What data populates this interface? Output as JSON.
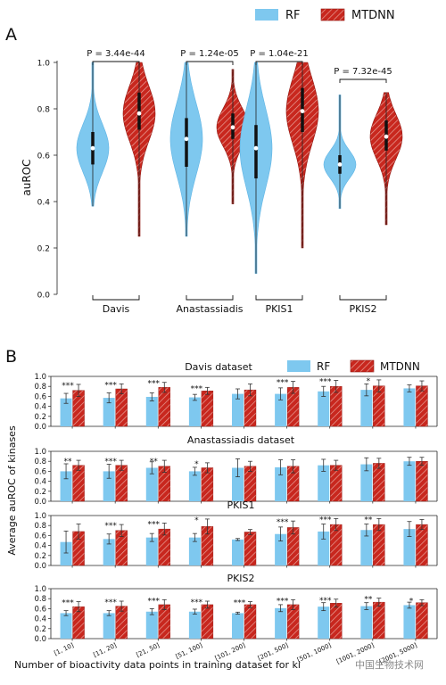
{
  "panel_a": {
    "label": "A",
    "legend": [
      "RF",
      "MTDNN"
    ],
    "ylabel": "auROC",
    "yticks": [
      "0.0",
      "0.2",
      "0.4",
      "0.6",
      "0.8",
      "1.0"
    ],
    "pvalues": [
      "P = 3.44e-44",
      "P = 1.24e-05",
      "P = 1.04e-21",
      "P = 7.32e-45"
    ]
  },
  "panel_b": {
    "label": "B",
    "legend": [
      "RF",
      "MTDNN"
    ],
    "ylabel": "Average auROC of kinases",
    "xlabel": "Number of bioactivity data points in training dataset for ki",
    "yticks": [
      "0.0",
      "0.2",
      "0.4",
      "0.6",
      "0.8",
      "1.0"
    ],
    "subplot_titles": [
      "Davis dataset",
      "Anastassiadis dataset",
      "PKIS1",
      "PKIS2"
    ]
  },
  "watermark": "中国生物技术网",
  "colors": {
    "rf": "#7ec8ef",
    "rf_edge": "#5fb4e4",
    "mtdnn": "#c8271e",
    "mtdnn_edge": "#8e140e"
  },
  "chart_data": [
    {
      "type": "violin",
      "title": "",
      "ylabel": "auROC",
      "ylim": [
        0.0,
        1.0
      ],
      "categories": [
        "Davis",
        "Anastassiadis",
        "PKIS1",
        "PKIS2"
      ],
      "series": [
        {
          "name": "RF",
          "min": [
            0.38,
            0.25,
            0.09,
            0.37
          ],
          "max": [
            1.0,
            1.0,
            1.0,
            0.86
          ],
          "q1": [
            0.56,
            0.55,
            0.5,
            0.52
          ],
          "median": [
            0.63,
            0.67,
            0.63,
            0.56
          ],
          "q3": [
            0.7,
            0.76,
            0.73,
            0.6
          ]
        },
        {
          "name": "MTDNN",
          "min": [
            0.25,
            0.39,
            0.2,
            0.3
          ],
          "max": [
            1.0,
            0.97,
            1.0,
            0.87
          ],
          "q1": [
            0.71,
            0.67,
            0.7,
            0.62
          ],
          "median": [
            0.78,
            0.72,
            0.79,
            0.68
          ],
          "q3": [
            0.87,
            0.78,
            0.89,
            0.75
          ]
        }
      ],
      "pvalues": [
        "P = 3.44e-44",
        "P = 1.24e-05",
        "P = 1.04e-21",
        "P = 7.32e-45"
      ]
    },
    {
      "type": "bar",
      "title": "Davis dataset",
      "categories": [
        "[1, 10]",
        "[11, 20]",
        "[21, 50]",
        "[51, 100]",
        "[101, 200]",
        "[201, 500]",
        "[501, 1000]",
        "[1001, 2000]",
        "[2001, 5000]"
      ],
      "ylim": [
        0.0,
        1.0
      ],
      "series": [
        {
          "name": "RF",
          "values": [
            0.56,
            0.57,
            0.59,
            0.58,
            0.65,
            0.65,
            0.7,
            0.73,
            0.76
          ],
          "err": [
            0.1,
            0.1,
            0.08,
            0.06,
            0.1,
            0.12,
            0.1,
            0.12,
            0.07
          ]
        },
        {
          "name": "MTDNN",
          "values": [
            0.72,
            0.75,
            0.78,
            0.71,
            0.73,
            0.78,
            0.8,
            0.81,
            0.81
          ],
          "err": [
            0.12,
            0.1,
            0.1,
            0.07,
            0.12,
            0.12,
            0.12,
            0.12,
            0.1
          ]
        }
      ],
      "annotations": [
        "***",
        "***",
        "***",
        "***",
        "",
        "***",
        "***",
        "*",
        ""
      ]
    },
    {
      "type": "bar",
      "title": "Anastassiadis dataset",
      "categories": [
        "[1, 10]",
        "[11, 20]",
        "[21, 50]",
        "[51, 100]",
        "[101, 200]",
        "[201, 500]",
        "[501, 1000]",
        "[1001, 2000]",
        "[2001, 5000]"
      ],
      "ylim": [
        0.0,
        1.0
      ],
      "series": [
        {
          "name": "RF",
          "values": [
            0.6,
            0.6,
            0.67,
            0.6,
            0.67,
            0.68,
            0.72,
            0.74,
            0.8
          ],
          "err": [
            0.15,
            0.14,
            0.12,
            0.08,
            0.18,
            0.15,
            0.12,
            0.13,
            0.08
          ]
        },
        {
          "name": "MTDNN",
          "values": [
            0.72,
            0.72,
            0.7,
            0.67,
            0.7,
            0.7,
            0.72,
            0.76,
            0.8
          ],
          "err": [
            0.1,
            0.1,
            0.12,
            0.1,
            0.1,
            0.13,
            0.1,
            0.1,
            0.08
          ]
        }
      ],
      "annotations": [
        "**",
        "***",
        "**",
        "*",
        "",
        "",
        "",
        "",
        ""
      ]
    },
    {
      "type": "bar",
      "title": "PKIS1",
      "categories": [
        "[1, 10]",
        "[11, 20]",
        "[21, 50]",
        "[51, 100]",
        "[101, 200]",
        "[201, 500]",
        "[501, 1000]",
        "[1001, 2000]",
        "[2001, 5000]"
      ],
      "ylim": [
        0.0,
        1.0
      ],
      "series": [
        {
          "name": "RF",
          "values": [
            0.47,
            0.53,
            0.56,
            0.56,
            0.52,
            0.63,
            0.68,
            0.71,
            0.73
          ],
          "err": [
            0.22,
            0.1,
            0.08,
            0.08,
            0.02,
            0.14,
            0.15,
            0.12,
            0.15
          ]
        },
        {
          "name": "MTDNN",
          "values": [
            0.68,
            0.7,
            0.73,
            0.78,
            0.67,
            0.76,
            0.82,
            0.82,
            0.82
          ],
          "err": [
            0.15,
            0.12,
            0.12,
            0.15,
            0.05,
            0.13,
            0.12,
            0.12,
            0.1
          ]
        }
      ],
      "annotations": [
        "",
        "***",
        "***",
        "*",
        "",
        "***",
        "***",
        "**",
        ""
      ]
    },
    {
      "type": "bar",
      "title": "PKIS2",
      "categories": [
        "[1, 10]",
        "[11, 20]",
        "[21, 50]",
        "[51, 100]",
        "[101, 200]",
        "[201, 500]",
        "[501, 1000]",
        "[1001, 2000]",
        "[2001, 5000]"
      ],
      "ylim": [
        0.0,
        1.0
      ],
      "series": [
        {
          "name": "RF",
          "values": [
            0.51,
            0.51,
            0.54,
            0.54,
            0.51,
            0.61,
            0.64,
            0.65,
            0.67
          ],
          "err": [
            0.05,
            0.05,
            0.06,
            0.05,
            0.02,
            0.07,
            0.08,
            0.07,
            0.06
          ]
        },
        {
          "name": "MTDNN",
          "values": [
            0.64,
            0.65,
            0.68,
            0.68,
            0.68,
            0.68,
            0.71,
            0.73,
            0.72
          ],
          "err": [
            0.1,
            0.1,
            0.1,
            0.07,
            0.06,
            0.1,
            0.08,
            0.08,
            0.06
          ]
        }
      ],
      "annotations": [
        "***",
        "***",
        "***",
        "***",
        "***",
        "***",
        "***",
        "**",
        "*"
      ]
    }
  ]
}
